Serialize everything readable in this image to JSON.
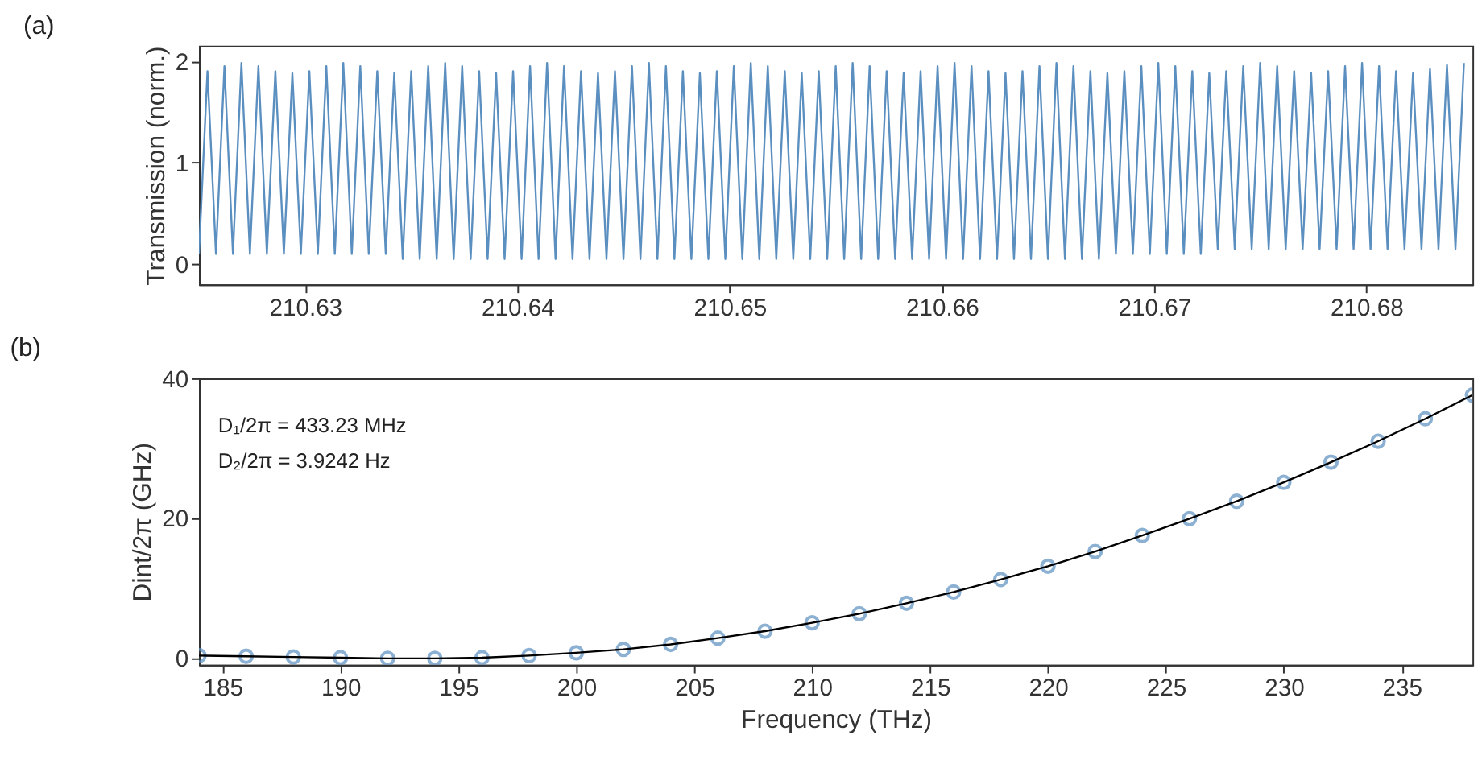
{
  "chart_data": [
    {
      "type": "line",
      "title": "(a)",
      "ylabel": "Transmission (norm.)",
      "xlim": [
        210.625,
        210.685
      ],
      "xticks": [
        210.63,
        210.64,
        210.65,
        210.66,
        210.67,
        210.68
      ],
      "ylim": [
        -0.2,
        2.15
      ],
      "yticks": [
        0,
        1,
        2
      ],
      "series": [
        {
          "color": "#5b8fc0",
          "x": [
            210.625,
            210.6254,
            210.6258,
            210.6262,
            210.6266,
            210.627,
            210.6274,
            210.6278,
            210.6282,
            210.6286,
            210.629,
            210.6294,
            210.6298,
            210.6302,
            210.6306,
            210.631,
            210.6314,
            210.6318,
            210.6322,
            210.6326,
            210.633,
            210.6334,
            210.6338,
            210.6342,
            210.6346,
            210.635,
            210.6354,
            210.6358,
            210.6362,
            210.6366,
            210.637,
            210.6374,
            210.6378,
            210.6382,
            210.6386,
            210.639,
            210.6394,
            210.6398,
            210.6402,
            210.6406,
            210.641,
            210.6414,
            210.6418,
            210.6422,
            210.6426,
            210.643,
            210.6434,
            210.6438,
            210.6442,
            210.6446,
            210.645,
            210.6454,
            210.6458,
            210.6462,
            210.6466,
            210.647,
            210.6474,
            210.6478,
            210.6482,
            210.6486,
            210.649,
            210.6494,
            210.6498,
            210.6502,
            210.6506,
            210.651,
            210.6514,
            210.6518,
            210.6522,
            210.6526,
            210.653,
            210.6534,
            210.6538,
            210.6542,
            210.6546,
            210.655,
            210.6554,
            210.6558,
            210.6562,
            210.6566,
            210.657,
            210.6574,
            210.6578,
            210.6582,
            210.6586,
            210.659,
            210.6594,
            210.6598,
            210.6602,
            210.6606,
            210.661,
            210.6614,
            210.6618,
            210.6622,
            210.6626,
            210.663,
            210.6634,
            210.6638,
            210.6642,
            210.6646,
            210.665,
            210.6654,
            210.6658,
            210.6662,
            210.6666,
            210.667,
            210.6674,
            210.6678,
            210.6682,
            210.6686,
            210.669,
            210.6694,
            210.6698,
            210.6702,
            210.6706,
            210.671,
            210.6714,
            210.6718,
            210.6722,
            210.6726,
            210.673,
            210.6734,
            210.6738,
            210.6742,
            210.6746,
            210.675,
            210.6754,
            210.6758,
            210.6762,
            210.6766,
            210.677,
            210.6774,
            210.6778,
            210.6782,
            210.6786,
            210.679,
            210.6794,
            210.6798,
            210.6802,
            210.6806,
            210.681,
            210.6814,
            210.6818,
            210.6822,
            210.6826,
            210.683,
            210.6834,
            210.6838,
            210.6842,
            210.6846
          ],
          "values": [
            0.1,
            1.9,
            0.1,
            1.95,
            0.1,
            1.98,
            0.1,
            1.95,
            0.1,
            1.9,
            0.1,
            1.88,
            0.1,
            1.9,
            0.1,
            1.95,
            0.1,
            1.98,
            0.1,
            1.95,
            0.1,
            1.9,
            0.1,
            1.88,
            0.05,
            1.9,
            0.05,
            1.95,
            0.05,
            1.98,
            0.05,
            1.95,
            0.05,
            1.9,
            0.05,
            1.88,
            0.05,
            1.9,
            0.05,
            1.95,
            0.05,
            1.98,
            0.05,
            1.95,
            0.05,
            1.9,
            0.05,
            1.88,
            0.05,
            1.9,
            0.05,
            1.95,
            0.05,
            1.98,
            0.05,
            1.95,
            0.05,
            1.9,
            0.05,
            1.88,
            0.05,
            1.9,
            0.05,
            1.95,
            0.05,
            1.98,
            0.05,
            1.95,
            0.05,
            1.9,
            0.05,
            1.88,
            0.05,
            1.9,
            0.05,
            1.95,
            0.05,
            1.98,
            0.05,
            1.95,
            0.05,
            1.9,
            0.05,
            1.88,
            0.05,
            1.9,
            0.05,
            1.95,
            0.05,
            1.98,
            0.05,
            1.95,
            0.05,
            1.9,
            0.05,
            1.88,
            0.05,
            1.9,
            0.05,
            1.95,
            0.05,
            1.98,
            0.05,
            1.95,
            0.05,
            1.9,
            0.05,
            1.88,
            0.1,
            1.9,
            0.1,
            1.95,
            0.1,
            1.98,
            0.1,
            1.95,
            0.1,
            1.9,
            0.1,
            1.88,
            0.15,
            1.9,
            0.15,
            1.95,
            0.15,
            1.98,
            0.15,
            1.95,
            0.15,
            1.9,
            0.15,
            1.88,
            0.15,
            1.9,
            0.15,
            1.95,
            0.15,
            1.98,
            0.15,
            1.95,
            0.15,
            1.9,
            0.15,
            1.88,
            0.15,
            1.92,
            0.15,
            1.96,
            0.15,
            1.98
          ]
        }
      ]
    },
    {
      "type": "scatter",
      "title": "(b)",
      "xlabel": "Frequency (THz)",
      "ylabel": "Dint/2π (GHz)",
      "xlim": [
        184,
        238
      ],
      "xticks": [
        185,
        190,
        195,
        200,
        205,
        210,
        215,
        220,
        225,
        230,
        235
      ],
      "ylim": [
        -1,
        40
      ],
      "yticks": [
        0,
        20,
        40
      ],
      "annotations": [
        "D₁/2π = 433.23 MHz",
        "D₂/2π = 3.9242 Hz"
      ],
      "series": [
        {
          "type": "scatter",
          "marker": "circle",
          "color": "#5b8fc0",
          "x": [
            184,
            186,
            188,
            190,
            192,
            194,
            196,
            198,
            200,
            202,
            204,
            206,
            208,
            210,
            212,
            214,
            216,
            218,
            220,
            222,
            224,
            226,
            228,
            230,
            232,
            234,
            236,
            238
          ],
          "values": [
            0.3,
            0.2,
            0.1,
            0.0,
            -0.1,
            -0.1,
            0.0,
            0.3,
            0.7,
            1.2,
            1.9,
            2.8,
            3.8,
            5.0,
            6.3,
            7.8,
            9.4,
            11.2,
            13.1,
            15.2,
            17.5,
            19.9,
            22.4,
            25.1,
            28.0,
            31.0,
            34.2,
            37.6
          ]
        },
        {
          "type": "line",
          "color": "#000000",
          "x": [
            184,
            186,
            188,
            190,
            192,
            194,
            196,
            198,
            200,
            202,
            204,
            206,
            208,
            210,
            212,
            214,
            216,
            218,
            220,
            222,
            224,
            226,
            228,
            230,
            232,
            234,
            236,
            238
          ],
          "values": [
            0.3,
            0.2,
            0.1,
            0.0,
            -0.1,
            -0.1,
            0.0,
            0.3,
            0.7,
            1.2,
            1.9,
            2.8,
            3.8,
            5.0,
            6.3,
            7.8,
            9.4,
            11.2,
            13.1,
            15.2,
            17.5,
            19.9,
            22.4,
            25.1,
            28.0,
            31.0,
            34.2,
            37.6
          ]
        }
      ]
    }
  ]
}
